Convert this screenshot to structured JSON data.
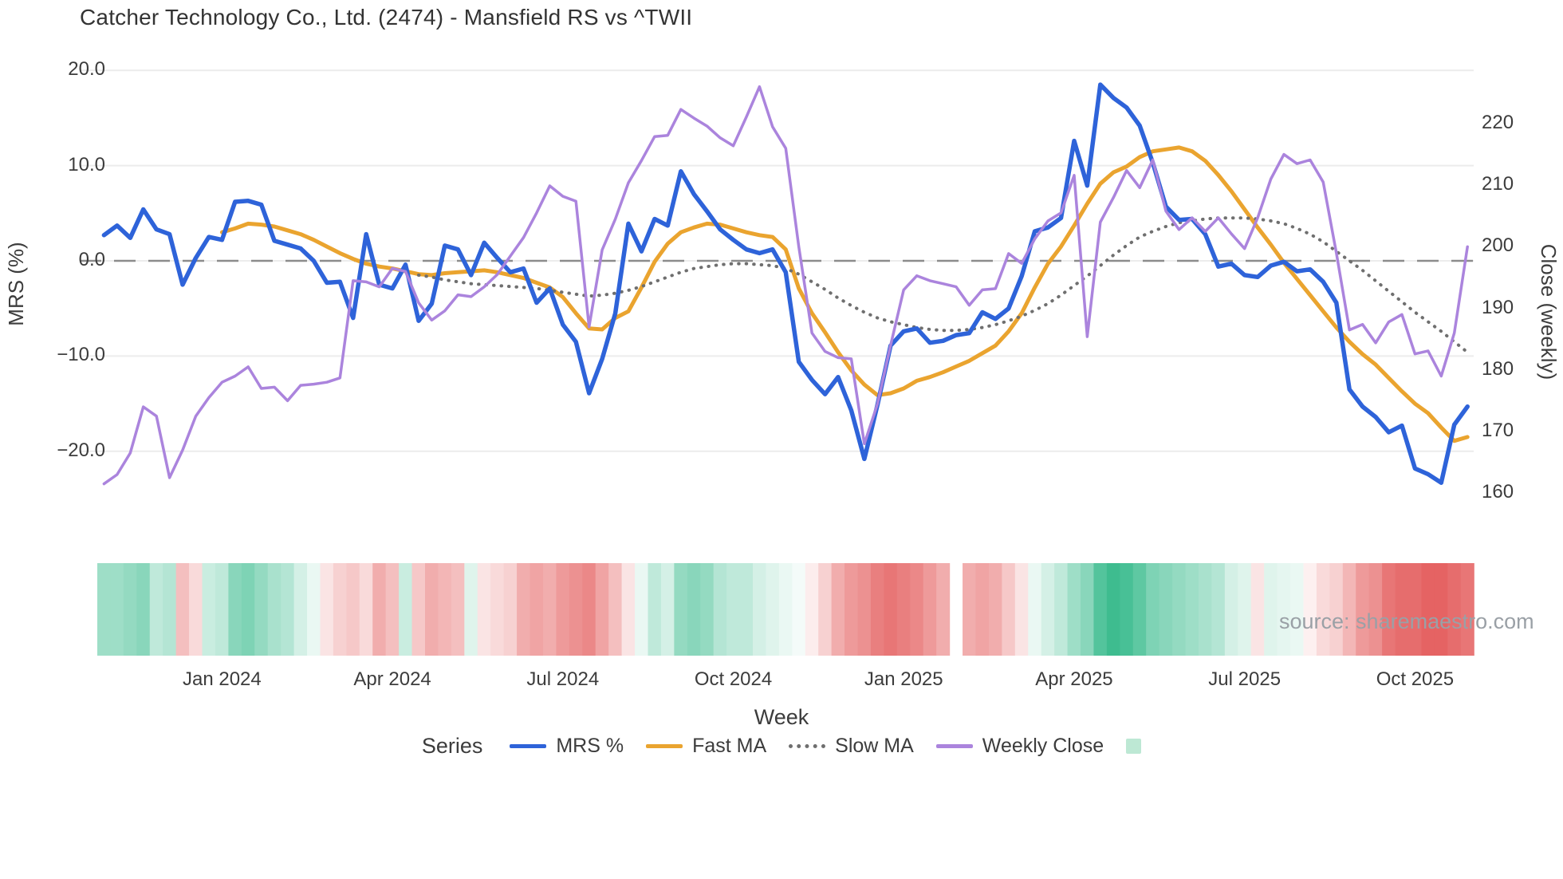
{
  "title": "Catcher Technology Co., Ltd. (2474) - Mansfield RS vs ^TWII",
  "left_axis": {
    "label": "MRS (%)",
    "ticks": [
      {
        "value": 20,
        "label": "20.0"
      },
      {
        "value": 10,
        "label": "10.0"
      },
      {
        "value": 0,
        "label": "0.0"
      },
      {
        "value": -10,
        "label": "−10.0"
      },
      {
        "value": -20,
        "label": "−20.0"
      }
    ]
  },
  "right_axis": {
    "label": "Close (weekly)",
    "ticks": [
      {
        "value": 220,
        "label": "220"
      },
      {
        "value": 210,
        "label": "210"
      },
      {
        "value": 200,
        "label": "200"
      },
      {
        "value": 190,
        "label": "190"
      },
      {
        "value": 180,
        "label": "180"
      },
      {
        "value": 170,
        "label": "170"
      },
      {
        "value": 160,
        "label": "160"
      }
    ]
  },
  "x_axis": {
    "label": "Week",
    "ticks": [
      {
        "week": 9,
        "label": "Jan 2024"
      },
      {
        "week": 22,
        "label": "Apr 2024"
      },
      {
        "week": 35,
        "label": "Jul 2024"
      },
      {
        "week": 48,
        "label": "Oct 2024"
      },
      {
        "week": 61,
        "label": "Jan 2025"
      },
      {
        "week": 74,
        "label": "Apr 2025"
      },
      {
        "week": 87,
        "label": "Jul 2025"
      },
      {
        "week": 100,
        "label": "Oct 2025"
      }
    ]
  },
  "legend": {
    "label": "Series",
    "items": [
      {
        "id": "mrs-pct",
        "label": "MRS %",
        "swatch": "line",
        "color": "#2e63d9"
      },
      {
        "id": "fast-ma",
        "label": "Fast MA",
        "swatch": "line",
        "color": "#eaa42f"
      },
      {
        "id": "slow-ma",
        "label": "Slow MA",
        "swatch": "dotted",
        "color": "#6f6f6f"
      },
      {
        "id": "weekly-close",
        "label": "Weekly Close",
        "swatch": "line",
        "color": "#ab84dd"
      },
      {
        "id": "heatmap-swatch",
        "label": "",
        "swatch": "square",
        "color": "#bde8d4"
      }
    ]
  },
  "source_note": "source: sharemaestro.com",
  "colors": {
    "grid": "#ececec",
    "zero_line": "#8c8c8c",
    "text": "#3c3c3c",
    "muted": "#9aa0a6",
    "heat_positive": "#28b583",
    "heat_negative": "#e04848"
  },
  "chart_data": {
    "type": "line",
    "title": "Catcher Technology Co., Ltd. (2474) - Mansfield RS vs ^TWII",
    "xlabel": "Week",
    "ylabel_left": "MRS (%)",
    "ylabel_right": "Close (weekly)",
    "x_unit": "week_index",
    "weeks_total": 105,
    "ylim_left": [
      -27,
      21.5
    ],
    "ylim_right": [
      156,
      231
    ],
    "grid": true,
    "legend_position": "bottom",
    "zero_reference_line": 0,
    "series": [
      {
        "name": "MRS %",
        "axis": "left",
        "color": "#2e63d9",
        "dash": "solid",
        "width": 5.5,
        "start_week": 0,
        "values": [
          2.7,
          3.7,
          2.4,
          5.4,
          3.3,
          2.8,
          -2.5,
          0.3,
          2.5,
          2.2,
          6.2,
          6.3,
          5.9,
          2.1,
          1.7,
          1.3,
          0.0,
          -2.3,
          -2.2,
          -6.0,
          2.8,
          -2.5,
          -2.9,
          -0.4,
          -6.3,
          -4.5,
          1.6,
          1.2,
          -1.5,
          1.9,
          0.3,
          -1.2,
          -0.8,
          -4.4,
          -2.9,
          -6.7,
          -8.5,
          -13.9,
          -10.3,
          -5.5,
          3.9,
          1.0,
          4.4,
          3.7,
          9.4,
          7.0,
          5.2,
          3.3,
          2.2,
          1.2,
          0.8,
          1.2,
          -1.2,
          -10.6,
          -12.5,
          -14.0,
          -12.2,
          -15.7,
          -20.8,
          -15.1,
          -8.9,
          -7.4,
          -7.1,
          -8.6,
          -8.4,
          -7.8,
          -7.6,
          -5.4,
          -6.1,
          -5.0,
          -1.6,
          3.1,
          3.5,
          4.5,
          12.6,
          7.9,
          18.5,
          17.1,
          16.1,
          14.2,
          10.3,
          5.7,
          4.3,
          4.4,
          2.8,
          -0.6,
          -0.3,
          -1.5,
          -1.7,
          -0.5,
          -0.1,
          -1.1,
          -0.9,
          -2.2,
          -4.4,
          -13.5,
          -15.3,
          -16.4,
          -18.0,
          -17.3,
          -21.8,
          -22.4,
          -23.3,
          -17.2,
          -15.3
        ]
      },
      {
        "name": "Fast MA",
        "axis": "left",
        "color": "#eaa42f",
        "dash": "solid",
        "width": 5,
        "start_week": 9,
        "values": [
          3.0,
          3.4,
          3.9,
          3.8,
          3.6,
          3.2,
          2.8,
          2.2,
          1.5,
          0.8,
          0.2,
          -0.3,
          -0.6,
          -0.8,
          -1.1,
          -1.4,
          -1.5,
          -1.3,
          -1.2,
          -1.1,
          -1.0,
          -1.2,
          -1.5,
          -1.8,
          -2.3,
          -2.8,
          -3.8,
          -5.5,
          -7.1,
          -7.2,
          -6.0,
          -5.3,
          -2.8,
          -0.1,
          1.8,
          3.0,
          3.5,
          3.9,
          3.8,
          3.4,
          3.0,
          2.7,
          2.5,
          1.2,
          -2.9,
          -5.5,
          -7.5,
          -9.6,
          -11.5,
          -13.0,
          -14.1,
          -13.9,
          -13.4,
          -12.6,
          -12.2,
          -11.7,
          -11.1,
          -10.5,
          -9.7,
          -8.9,
          -7.4,
          -5.5,
          -2.8,
          -0.3,
          1.5,
          3.7,
          6.0,
          8.1,
          9.3,
          9.9,
          10.9,
          11.5,
          11.7,
          11.9,
          11.5,
          10.5,
          9.0,
          7.3,
          5.4,
          3.5,
          1.7,
          -0.2,
          -1.9,
          -3.6,
          -5.3,
          -7.0,
          -8.5,
          -9.8,
          -10.9,
          -12.3,
          -13.7,
          -15.0,
          -16.0,
          -17.5,
          -18.9,
          -18.5
        ]
      },
      {
        "name": "Slow MA",
        "axis": "left",
        "color": "#6f6f6f",
        "dash": "dotted",
        "width": 4,
        "start_week": 24,
        "values": [
          -1.5,
          -1.7,
          -2.0,
          -2.2,
          -2.4,
          -2.5,
          -2.6,
          -2.7,
          -2.8,
          -2.9,
          -3.1,
          -3.3,
          -3.5,
          -3.7,
          -3.6,
          -3.4,
          -3.1,
          -2.7,
          -2.2,
          -1.7,
          -1.2,
          -0.8,
          -0.6,
          -0.4,
          -0.3,
          -0.3,
          -0.4,
          -0.5,
          -0.8,
          -1.4,
          -2.2,
          -3.0,
          -3.9,
          -4.7,
          -5.4,
          -6.0,
          -6.4,
          -6.7,
          -7.0,
          -7.2,
          -7.3,
          -7.3,
          -7.2,
          -7.0,
          -6.7,
          -6.3,
          -5.8,
          -5.2,
          -4.5,
          -3.6,
          -2.6,
          -1.6,
          -0.5,
          0.6,
          1.6,
          2.5,
          3.1,
          3.6,
          4.0,
          4.2,
          4.4,
          4.5,
          4.5,
          4.5,
          4.4,
          4.2,
          3.9,
          3.4,
          2.8,
          2.0,
          1.0,
          0.0,
          -1.0,
          -2.1,
          -3.2,
          -4.3,
          -5.4,
          -6.4,
          -7.4,
          -8.5,
          -9.6
        ]
      },
      {
        "name": "Weekly Close",
        "axis": "right",
        "color": "#ab84dd",
        "dash": "solid",
        "width": 3.5,
        "start_week": 0,
        "values": [
          161.5,
          163.0,
          166.5,
          174.0,
          172.5,
          162.5,
          167.0,
          172.5,
          175.5,
          178.0,
          179.0,
          180.5,
          177.0,
          177.2,
          175.0,
          177.5,
          177.7,
          178.0,
          178.7,
          194.5,
          194.3,
          193.5,
          196.5,
          196.0,
          190.9,
          188.1,
          189.6,
          192.2,
          191.9,
          193.5,
          195.5,
          198.5,
          201.5,
          205.5,
          209.9,
          208.2,
          207.4,
          187.0,
          199.5,
          204.5,
          210.4,
          214.0,
          217.9,
          218.1,
          222.3,
          220.9,
          219.6,
          217.7,
          216.4,
          221.1,
          226.0,
          219.5,
          216.0,
          200.0,
          186.0,
          183.0,
          182.0,
          181.8,
          168.0,
          174.5,
          184.0,
          193.0,
          195.3,
          194.5,
          194.0,
          193.5,
          190.5,
          193.0,
          193.2,
          198.9,
          197.3,
          201.3,
          204.2,
          205.5,
          211.6,
          185.4,
          204.0,
          208.0,
          212.4,
          209.6,
          214.1,
          205.8,
          202.8,
          204.7,
          202.5,
          204.7,
          202.1,
          199.7,
          204.7,
          211.0,
          215.0,
          213.5,
          214.1,
          210.5,
          199.0,
          186.5,
          187.4,
          184.4,
          187.8,
          189.0,
          182.6,
          183.1,
          179.0,
          186.0,
          200.0
        ]
      }
    ],
    "heatmap": {
      "description": "weekly strength stripe below chart, green=positive red=negative, white gap at week 65",
      "gap_weeks": [
        65
      ],
      "scores": [
        0.45,
        0.45,
        0.5,
        0.55,
        0.3,
        0.35,
        -0.35,
        -0.2,
        0.25,
        0.3,
        0.55,
        0.6,
        0.5,
        0.4,
        0.35,
        0.2,
        0.1,
        -0.15,
        -0.25,
        -0.3,
        -0.2,
        -0.45,
        -0.35,
        0.25,
        -0.3,
        -0.45,
        -0.4,
        -0.35,
        0.15,
        -0.15,
        -0.2,
        -0.25,
        -0.45,
        -0.5,
        -0.45,
        -0.55,
        -0.6,
        -0.65,
        -0.5,
        -0.35,
        -0.15,
        0.1,
        0.3,
        0.2,
        0.5,
        0.55,
        0.5,
        0.35,
        0.3,
        0.3,
        0.2,
        0.15,
        0.1,
        0.05,
        -0.1,
        -0.25,
        -0.45,
        -0.55,
        -0.6,
        -0.7,
        -0.75,
        -0.7,
        -0.65,
        -0.55,
        -0.45,
        null,
        -0.45,
        -0.5,
        -0.45,
        -0.3,
        -0.15,
        0.1,
        0.2,
        0.3,
        0.45,
        0.55,
        0.8,
        0.9,
        0.85,
        0.75,
        0.6,
        0.55,
        0.5,
        0.45,
        0.4,
        0.35,
        0.2,
        0.15,
        -0.15,
        0.15,
        0.12,
        0.1,
        -0.08,
        -0.2,
        -0.25,
        -0.4,
        -0.55,
        -0.6,
        -0.75,
        -0.8,
        -0.8,
        -0.85,
        -0.85,
        -0.8,
        -0.75
      ]
    }
  }
}
